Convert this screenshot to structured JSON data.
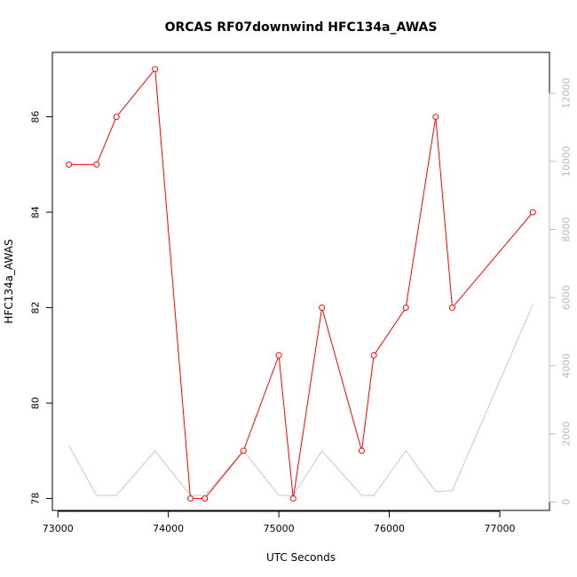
{
  "chart_data": {
    "type": "line",
    "title": "ORCAS RF07downwind HFC134a_AWAS",
    "xlabel": "UTC Seconds",
    "ylabel": "HFC134a_AWAS",
    "xlim": [
      72950,
      77450
    ],
    "ylim": [
      77.75,
      87.35
    ],
    "y2lim": [
      -250,
      13200
    ],
    "x_ticks": [
      73000,
      74000,
      75000,
      76000,
      77000
    ],
    "y_ticks": [
      78,
      80,
      82,
      84,
      86
    ],
    "y2_ticks": [
      0,
      2000,
      4000,
      6000,
      8000,
      10000,
      12000
    ],
    "grid": false,
    "series": [
      {
        "color": "#ff0000",
        "axis": "left",
        "style": "line+circle-markers",
        "x": [
          73100,
          73350,
          73530,
          73880,
          74200,
          74330,
          74680,
          75000,
          75130,
          75390,
          75750,
          75860,
          76150,
          76420,
          76570,
          77300
        ],
        "y": [
          85,
          85,
          86,
          87,
          78,
          78,
          79,
          81,
          78,
          82,
          79,
          81,
          82,
          86,
          82,
          84
        ]
      },
      {
        "color": "#c8c8c8",
        "axis": "right",
        "style": "line",
        "x": [
          73100,
          73350,
          73530,
          73880,
          74200,
          74330,
          74680,
          75000,
          75130,
          75390,
          75750,
          75860,
          76150,
          76420,
          76570,
          77300
        ],
        "y": [
          1650,
          190,
          190,
          1500,
          190,
          190,
          1500,
          190,
          190,
          1500,
          190,
          190,
          1500,
          300,
          330,
          5800
        ]
      }
    ]
  }
}
